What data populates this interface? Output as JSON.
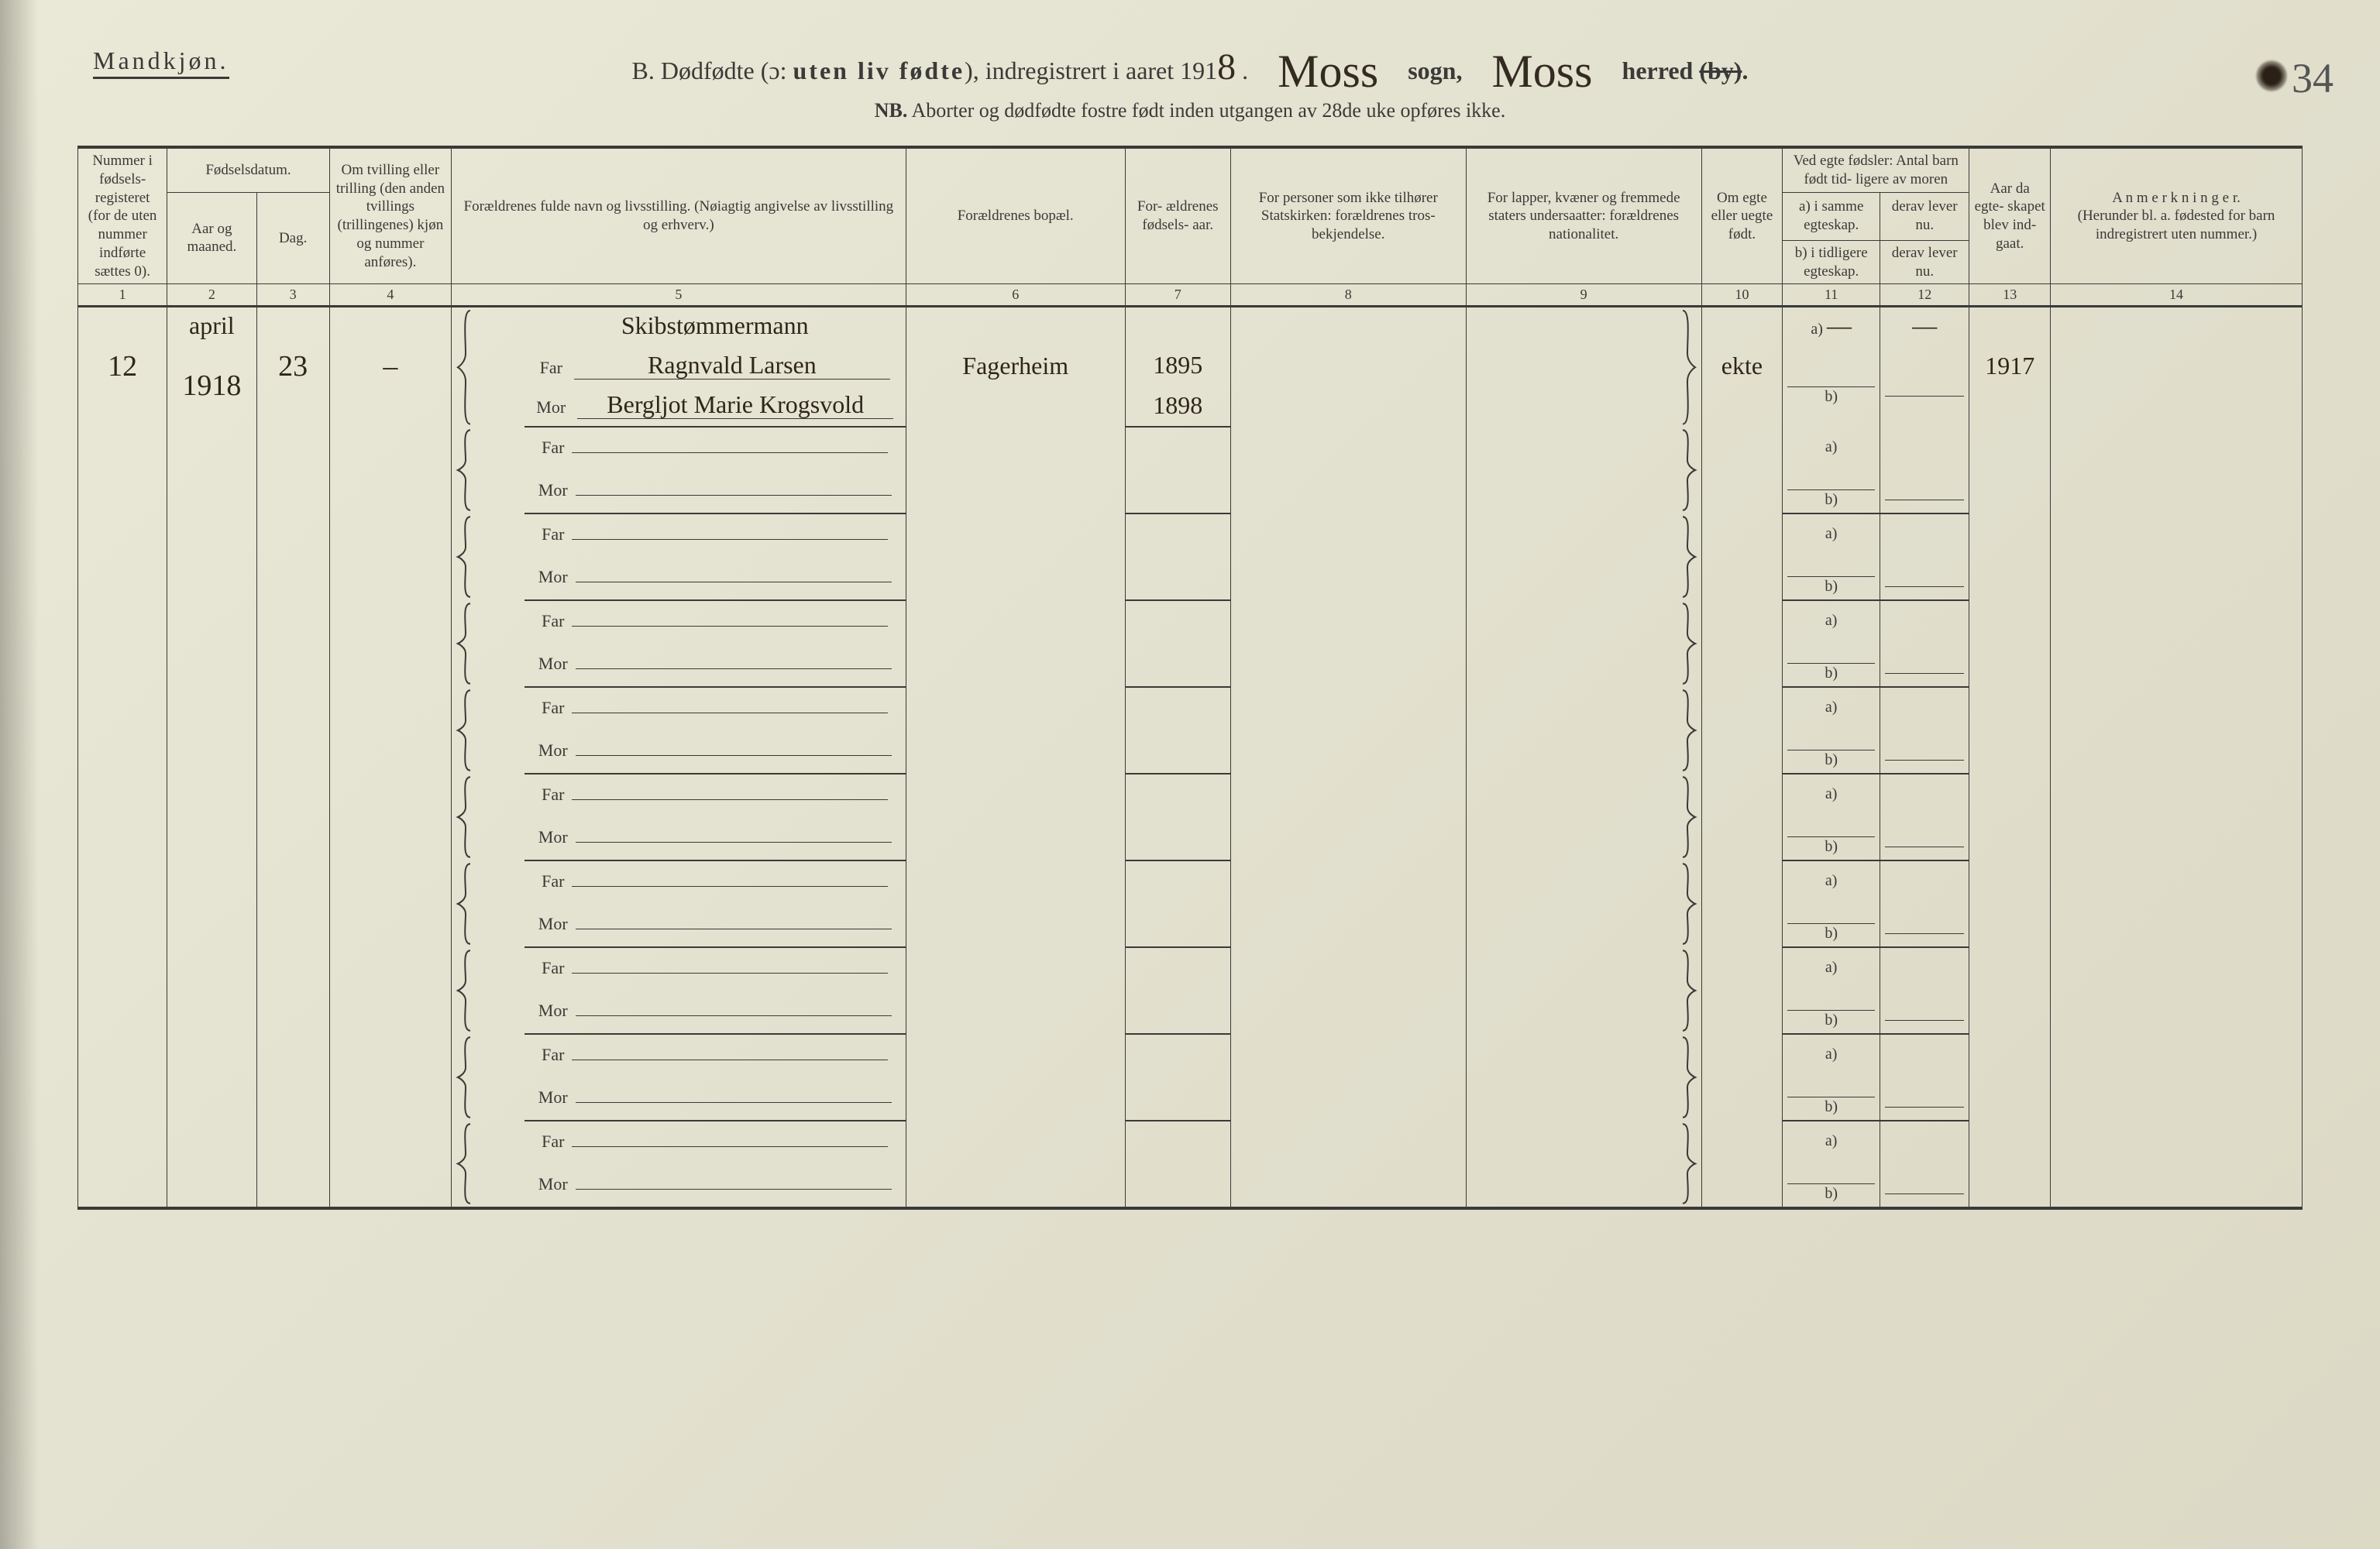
{
  "page": {
    "corner_number": "34",
    "background_color": "#e2e0ce",
    "line_color": "#3a3a38",
    "text_color": "#3a3a38",
    "handwriting_color": "#2e261c"
  },
  "header": {
    "gender_label": "Mandkjøn.",
    "title_prefix": "B. Dødfødte (ɔ: ",
    "title_bold": "uten liv fødte",
    "title_mid": "), indregistrert i aaret 191",
    "year_suffix_hw": "8",
    "title_dot": " .",
    "parish_hw": "Moss",
    "parish_print": "sogn,",
    "district_hw": "Moss",
    "district_print": "herred",
    "district_struck": "(by)",
    "district_end": ".",
    "note_nb": "NB.",
    "note_rest": "  Aborter og dødfødte fostre født inden utgangen av 28de uke opføres ikke."
  },
  "columns": {
    "c1": "Nummer i fødsels- registeret (for de uten nummer indførte sættes 0).",
    "c2_top": "Fødselsdatum.",
    "c2": "Aar og maaned.",
    "c3": "Dag.",
    "c4": "Om tvilling eller trilling (den anden tvillings (trillingenes) kjøn og nummer anføres).",
    "c5": "Forældrenes fulde navn og livsstilling. (Nøiagtig angivelse av livsstilling og erhverv.)",
    "c6": "Forældrenes bopæl.",
    "c7": "For- ældrenes fødsels- aar.",
    "c8": "For personer som ikke tilhører Statskirken: forældrenes tros- bekjendelse.",
    "c9": "For lapper, kvæner og fremmede staters undersaatter: forældrenes nationalitet.",
    "c10": "Om egte eller uegte født.",
    "c11_top": "Ved egte fødsler: Antal barn født tid- ligere av moren",
    "c11a": "a) i samme egteskap.",
    "c11b": "b) i tidligere egteskap.",
    "c12a": "derav lever nu.",
    "c12b": "derav lever nu.",
    "c13": "Aar da egte- skapet blev ind- gaat.",
    "c14_top": "A n m e r k n i n g e r.",
    "c14_sub": "(Herunder bl. a. fødested for barn indregistrert uten nummer.)",
    "nums": [
      "1",
      "2",
      "3",
      "4",
      "5",
      "6",
      "7",
      "8",
      "9",
      "10",
      "11",
      "12",
      "13",
      "14"
    ],
    "far": "Far",
    "mor": "Mor",
    "a_label": "a)",
    "b_label": "b)"
  },
  "entries": [
    {
      "number": "12",
      "month_hw": "april",
      "year_hw": "1918",
      "day_hw": "23",
      "twin_hw": "–",
      "father_occupation_hw": "Skibstømmermann",
      "father_name_hw": "Ragnvald Larsen",
      "mother_name_hw": "Bergljot Marie Krogsvold",
      "residence_hw": "Fagerheim",
      "father_birth_hw": "1895",
      "mother_birth_hw": "1898",
      "legit_hw": "ekte",
      "c11a_hw": "—",
      "c12a_hw": "—",
      "c13_hw": "1917"
    }
  ],
  "blank_rows": 9
}
